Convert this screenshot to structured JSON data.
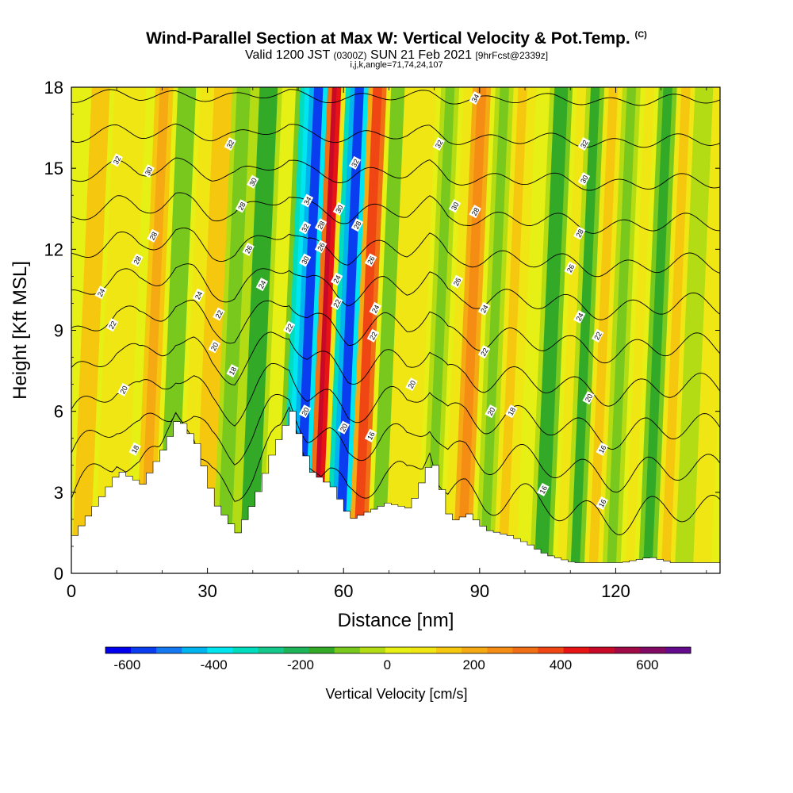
{
  "header": {
    "title": "Wind-Parallel Section at Max W: Vertical Velocity & Pot.Temp.",
    "copyright_mark": "(C)",
    "valid_prefix": "Valid 1200 JST",
    "valid_utc": "(0300Z)",
    "valid_date": "SUN 21 Feb 2021",
    "forecast_info": "[9hrFcst@2339z]",
    "params": "i,j,k,angle=71,74,24,107"
  },
  "chart_data": {
    "type": "heatmap",
    "title": "Wind-Parallel Section at Max W: Vertical Velocity & Pot.Temp.",
    "xlabel": "Distance [nm]",
    "ylabel": "Height [Kft MSL]",
    "xlim": [
      0,
      143
    ],
    "ylim": [
      0,
      18
    ],
    "x_ticks": [
      0,
      30,
      60,
      90,
      120
    ],
    "y_ticks": [
      0,
      3,
      6,
      9,
      12,
      15,
      18
    ],
    "grid": false,
    "colorbar": {
      "label": "Vertical Velocity [cm/s]",
      "tick_values": [
        -600,
        -400,
        -200,
        0,
        200,
        400,
        600
      ],
      "range": [
        -650,
        700
      ],
      "colors": [
        "#0000ee",
        "#0a3cf0",
        "#1478f0",
        "#00b4f0",
        "#00e6f0",
        "#00dcbe",
        "#14c88c",
        "#1eb45a",
        "#32aa28",
        "#78c81e",
        "#b4dc14",
        "#e6f014",
        "#f0e614",
        "#f5c80f",
        "#f5aa14",
        "#f58c14",
        "#f06e14",
        "#f04614",
        "#e61414",
        "#c80a28",
        "#a00a46",
        "#820a64",
        "#640a8c"
      ]
    },
    "velocity_bands": [
      {
        "x": 2,
        "w": 145
      },
      {
        "x": 7,
        "w": 60
      },
      {
        "x": 10,
        "w": 110
      },
      {
        "x": 16,
        "w": 200
      },
      {
        "x": 21,
        "w": -110
      },
      {
        "x": 26,
        "w": 95
      },
      {
        "x": 29,
        "w": 175
      },
      {
        "x": 33,
        "w": -85
      },
      {
        "x": 39,
        "w": -175
      },
      {
        "x": 43,
        "w": 40
      },
      {
        "x": 48,
        "w": -380
      },
      {
        "x": 50,
        "w": -620
      },
      {
        "x": 54,
        "w": 560
      },
      {
        "x": 57,
        "w": -420
      },
      {
        "x": 59,
        "w": -600
      },
      {
        "x": 63,
        "w": 420
      },
      {
        "x": 67,
        "w": -120
      },
      {
        "x": 71,
        "w": 110
      },
      {
        "x": 75,
        "w": 60
      },
      {
        "x": 79,
        "w": -90
      },
      {
        "x": 82,
        "w": 70
      },
      {
        "x": 86,
        "w": 240
      },
      {
        "x": 91,
        "w": -85
      },
      {
        "x": 95,
        "w": 130
      },
      {
        "x": 99,
        "w": 50
      },
      {
        "x": 104,
        "w": -170
      },
      {
        "x": 108,
        "w": 110
      },
      {
        "x": 111,
        "w": -190
      },
      {
        "x": 115,
        "w": 140
      },
      {
        "x": 119,
        "w": -80
      },
      {
        "x": 123,
        "w": 60
      },
      {
        "x": 127,
        "w": -150
      },
      {
        "x": 131,
        "w": 120
      },
      {
        "x": 135,
        "w": -60
      },
      {
        "x": 139,
        "w": 90
      }
    ],
    "terrain_x": [
      0,
      5,
      10,
      15,
      20,
      23,
      27,
      31,
      36,
      40,
      44,
      48,
      52,
      57,
      61,
      65,
      69,
      74,
      79,
      83,
      87,
      91,
      96,
      100,
      104,
      110,
      116,
      121,
      127,
      132,
      137,
      143
    ],
    "terrain_height": [
      1.4,
      2.6,
      3.8,
      3.3,
      4.7,
      5.8,
      4.8,
      2.6,
      1.5,
      2.8,
      4.6,
      6.0,
      3.8,
      3.2,
      2.0,
      2.3,
      2.6,
      2.4,
      4.3,
      1.9,
      2.2,
      1.6,
      1.4,
      1.1,
      0.7,
      0.4,
      0.4,
      0.4,
      0.6,
      0.4,
      0.4,
      0.4
    ],
    "isentrope_values": [
      16,
      18,
      20,
      22,
      24,
      26,
      28,
      30,
      32,
      34
    ],
    "isentrope_base_height": 2.0,
    "isentrope_spacing": 1.55,
    "contour_labels": [
      {
        "text": "32",
        "x": 10,
        "y": 15.3
      },
      {
        "text": "30",
        "x": 17,
        "y": 14.9
      },
      {
        "text": "28",
        "x": 18,
        "y": 12.5
      },
      {
        "text": "28",
        "x": 14.5,
        "y": 11.6
      },
      {
        "text": "24",
        "x": 6.5,
        "y": 10.4
      },
      {
        "text": "22",
        "x": 9,
        "y": 9.2
      },
      {
        "text": "20",
        "x": 11.5,
        "y": 6.8
      },
      {
        "text": "18",
        "x": 14,
        "y": 4.6
      },
      {
        "text": "32",
        "x": 35,
        "y": 15.9
      },
      {
        "text": "30",
        "x": 40,
        "y": 14.5
      },
      {
        "text": "28",
        "x": 37.5,
        "y": 13.6
      },
      {
        "text": "26",
        "x": 39,
        "y": 12.0
      },
      {
        "text": "24",
        "x": 28,
        "y": 10.3
      },
      {
        "text": "24",
        "x": 42,
        "y": 10.7
      },
      {
        "text": "22",
        "x": 32.5,
        "y": 9.6
      },
      {
        "text": "20",
        "x": 31.5,
        "y": 8.4
      },
      {
        "text": "18",
        "x": 35.5,
        "y": 7.5
      },
      {
        "text": "22",
        "x": 48,
        "y": 9.1
      },
      {
        "text": "34",
        "x": 52,
        "y": 13.8
      },
      {
        "text": "32",
        "x": 51.5,
        "y": 12.8
      },
      {
        "text": "30",
        "x": 51.5,
        "y": 11.6
      },
      {
        "text": "28",
        "x": 55,
        "y": 12.9
      },
      {
        "text": "26",
        "x": 55,
        "y": 12.1
      },
      {
        "text": "30",
        "x": 59,
        "y": 13.5
      },
      {
        "text": "32",
        "x": 62.5,
        "y": 15.2
      },
      {
        "text": "28",
        "x": 63,
        "y": 12.9
      },
      {
        "text": "26",
        "x": 66,
        "y": 11.6
      },
      {
        "text": "24",
        "x": 58.5,
        "y": 10.9
      },
      {
        "text": "22",
        "x": 58.5,
        "y": 10.0
      },
      {
        "text": "24",
        "x": 67,
        "y": 9.8
      },
      {
        "text": "22",
        "x": 66.5,
        "y": 8.8
      },
      {
        "text": "20",
        "x": 51.5,
        "y": 6.0
      },
      {
        "text": "20",
        "x": 60,
        "y": 5.4
      },
      {
        "text": "16",
        "x": 66,
        "y": 5.1
      },
      {
        "text": "20",
        "x": 75,
        "y": 7.0
      },
      {
        "text": "34",
        "x": 89,
        "y": 17.6
      },
      {
        "text": "32",
        "x": 81,
        "y": 15.9
      },
      {
        "text": "30",
        "x": 84.5,
        "y": 13.6
      },
      {
        "text": "28",
        "x": 89,
        "y": 13.4
      },
      {
        "text": "26",
        "x": 85,
        "y": 10.8
      },
      {
        "text": "24",
        "x": 91,
        "y": 9.8
      },
      {
        "text": "22",
        "x": 91,
        "y": 8.2
      },
      {
        "text": "20",
        "x": 92.5,
        "y": 6.0
      },
      {
        "text": "18",
        "x": 97,
        "y": 6.0
      },
      {
        "text": "32",
        "x": 113,
        "y": 15.9
      },
      {
        "text": "30",
        "x": 113,
        "y": 14.6
      },
      {
        "text": "28",
        "x": 112,
        "y": 12.6
      },
      {
        "text": "26",
        "x": 110,
        "y": 11.3
      },
      {
        "text": "24",
        "x": 112,
        "y": 9.5
      },
      {
        "text": "22",
        "x": 116,
        "y": 8.8
      },
      {
        "text": "20",
        "x": 114,
        "y": 6.5
      },
      {
        "text": "16",
        "x": 117,
        "y": 4.6
      },
      {
        "text": "16",
        "x": 104,
        "y": 3.1
      },
      {
        "text": "16",
        "x": 117,
        "y": 2.6
      }
    ]
  }
}
